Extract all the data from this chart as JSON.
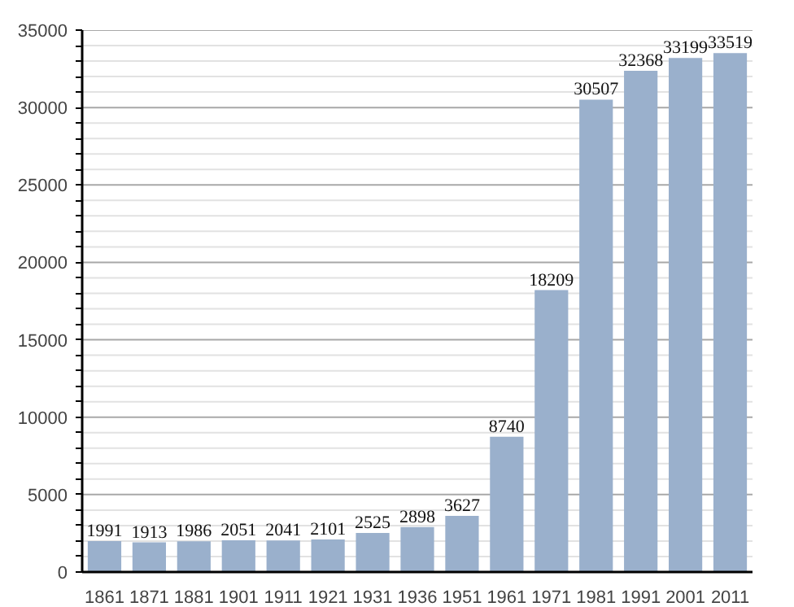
{
  "chart_data": {
    "type": "bar",
    "categories": [
      "1861",
      "1871",
      "1881",
      "1901",
      "1911",
      "1921",
      "1931",
      "1936",
      "1951",
      "1961",
      "1971",
      "1981",
      "1991",
      "2001",
      "2011"
    ],
    "values": [
      1991,
      1913,
      1986,
      2051,
      2041,
      2101,
      2525,
      2898,
      3627,
      8740,
      18209,
      30507,
      32368,
      33199,
      33519
    ],
    "color": "#9ab0cc",
    "ylim": [
      0,
      35000
    ],
    "yticks": [
      0,
      {
        "value": 1000,
        "label": null
      },
      {
        "value": 2000,
        "label": null
      },
      {
        "value": 3000,
        "label": null
      },
      {
        "value": 4000,
        "label": null
      },
      5000,
      {
        "value": 6000,
        "label": null
      },
      {
        "value": 7000,
        "label": null
      },
      {
        "value": 8000,
        "label": null
      },
      {
        "value": 9000,
        "label": null
      },
      10000,
      {
        "value": 11000,
        "label": null
      },
      {
        "value": 12000,
        "label": null
      },
      {
        "value": 13000,
        "label": null
      },
      {
        "value": 14000,
        "label": null
      },
      15000,
      {
        "value": 16000,
        "label": null
      },
      {
        "value": 17000,
        "label": null
      },
      {
        "value": 18000,
        "label": null
      },
      {
        "value": 19000,
        "label": null
      },
      20000,
      {
        "value": 21000,
        "label": null
      },
      {
        "value": 22000,
        "label": null
      },
      {
        "value": 23000,
        "label": null
      },
      {
        "value": 24000,
        "label": null
      },
      25000,
      {
        "value": 26000,
        "label": null
      },
      {
        "value": 27000,
        "label": null
      },
      {
        "value": 28000,
        "label": null
      },
      {
        "value": 29000,
        "label": null
      },
      30000,
      {
        "value": 31000,
        "label": null
      },
      {
        "value": 32000,
        "label": null
      },
      {
        "value": 33000,
        "label": null
      },
      {
        "value": 34000,
        "label": null
      },
      35000
    ],
    "grid": "y",
    "data_labels": true
  }
}
